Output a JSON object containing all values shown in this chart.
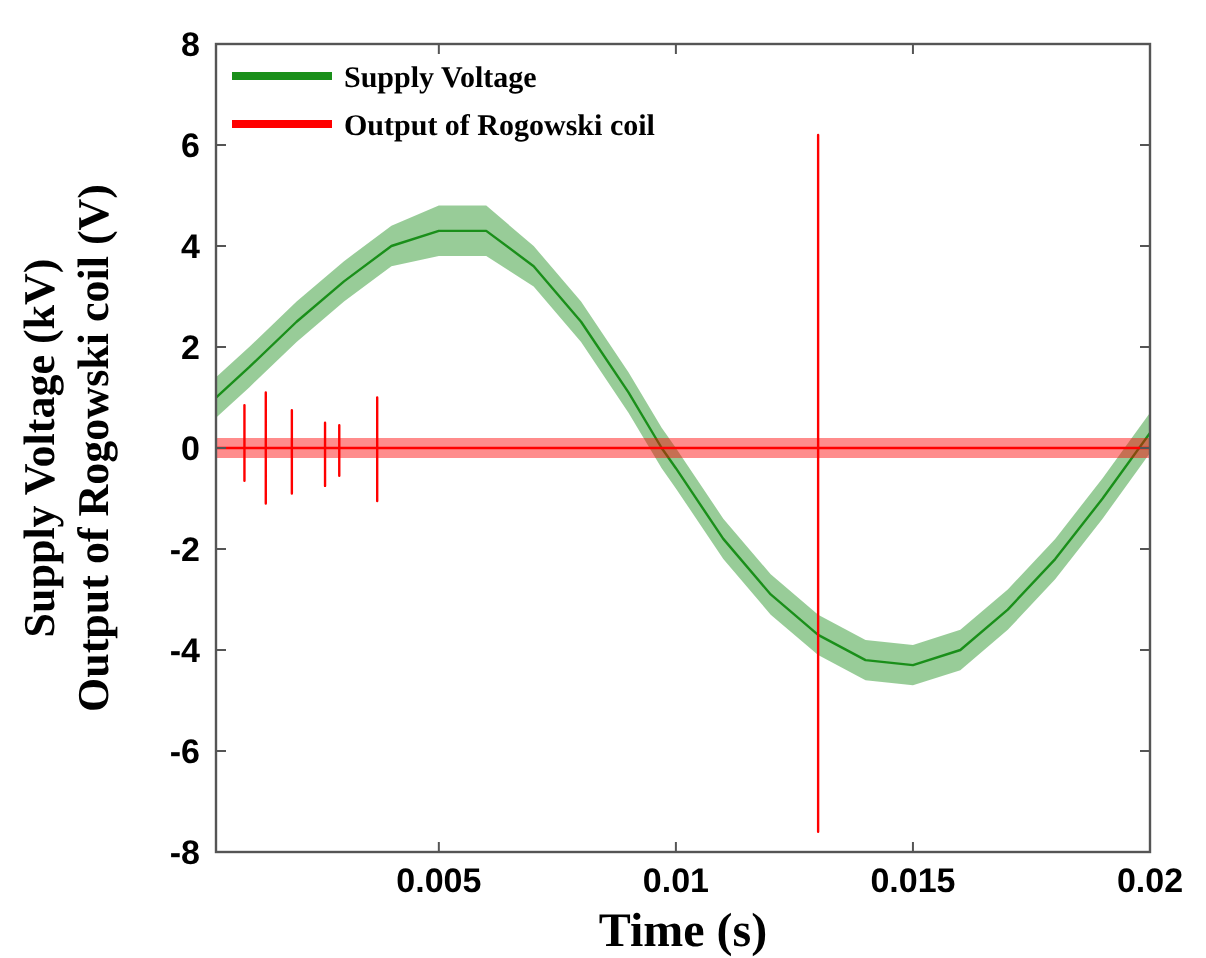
{
  "chart_data": {
    "type": "line",
    "xlabel": "Time (s)",
    "ylabel": "Supply Voltage (kV)\nOutput of Rogowski coil (V)",
    "xlim": [
      0.0003,
      0.02
    ],
    "xticks": [
      0.005,
      0.01,
      0.015,
      0.02
    ],
    "ylim": [
      -8,
      8
    ],
    "yticks": [
      -8,
      -6,
      -4,
      -2,
      0,
      2,
      4,
      6,
      8
    ],
    "legend": "top left",
    "grid": false,
    "line_style": "solid",
    "marker": "none",
    "series": [
      {
        "name": "Supply Voltage",
        "color": "#1a8f1a",
        "x": [
          0.0003,
          0.001,
          0.002,
          0.003,
          0.004,
          0.005,
          0.006,
          0.007,
          0.008,
          0.009,
          0.0097,
          0.01,
          0.011,
          0.012,
          0.013,
          0.014,
          0.015,
          0.016,
          0.017,
          0.018,
          0.019,
          0.02
        ],
        "values": [
          1.0,
          1.6,
          2.5,
          3.3,
          4.0,
          4.3,
          4.3,
          3.6,
          2.5,
          1.1,
          0,
          -0.4,
          -1.8,
          -2.9,
          -3.7,
          -4.2,
          -4.3,
          -4.0,
          -3.2,
          -2.2,
          -1.0,
          0.3
        ],
        "lower": [
          0.6,
          1.2,
          2.1,
          2.9,
          3.6,
          3.8,
          3.8,
          3.2,
          2.1,
          0.7,
          -0.4,
          -0.8,
          -2.2,
          -3.3,
          -4.1,
          -4.6,
          -4.7,
          -4.4,
          -3.6,
          -2.6,
          -1.4,
          -0.1
        ],
        "upper": [
          1.4,
          2.0,
          2.9,
          3.7,
          4.4,
          4.8,
          4.8,
          4.0,
          2.9,
          1.5,
          0.4,
          0,
          -1.4,
          -2.5,
          -3.3,
          -3.8,
          -3.9,
          -3.6,
          -2.8,
          -1.8,
          -0.6,
          0.7
        ]
      },
      {
        "name": "Output of Rogowski coil",
        "color": "#ff0000",
        "x": [
          0.0003,
          0.0009,
          0.0009,
          0.0009,
          0.0009,
          0.00135,
          0.00135,
          0.00135,
          0.00135,
          0.0019,
          0.0019,
          0.0019,
          0.0019,
          0.0026,
          0.0026,
          0.0026,
          0.0026,
          0.0029,
          0.0029,
          0.0029,
          0.0029,
          0.0037,
          0.0037,
          0.0037,
          0.0037,
          0.013,
          0.013,
          0.013,
          0.013,
          0.02
        ],
        "values": [
          0,
          0,
          0.85,
          -0.65,
          0,
          0,
          1.1,
          -1.1,
          0,
          0,
          0.75,
          -0.9,
          0,
          0,
          0.5,
          -0.75,
          0,
          0,
          0.45,
          -0.55,
          0,
          0,
          1.0,
          -1.05,
          0,
          0,
          6.2,
          -7.6,
          0,
          0
        ],
        "lower": [
          -0.2,
          -0.2,
          -0.2,
          -0.2,
          -0.2,
          -0.2,
          -0.2,
          -0.2,
          -0.2,
          -0.2,
          -0.2,
          -0.2,
          -0.2,
          -0.2,
          -0.2,
          -0.2,
          -0.2,
          -0.2,
          -0.2,
          -0.2,
          -0.2,
          -0.2,
          -0.2,
          -0.2,
          -0.2,
          -0.2,
          -0.2,
          -0.2,
          -0.2,
          -0.2
        ],
        "upper": [
          0.2,
          0.2,
          0.2,
          0.2,
          0.2,
          0.2,
          0.2,
          0.2,
          0.2,
          0.2,
          0.2,
          0.2,
          0.2,
          0.2,
          0.2,
          0.2,
          0.2,
          0.2,
          0.2,
          0.2,
          0.2,
          0.2,
          0.2,
          0.2,
          0.2,
          0.2,
          0.2,
          0.2,
          0.2,
          0.2
        ]
      }
    ]
  }
}
